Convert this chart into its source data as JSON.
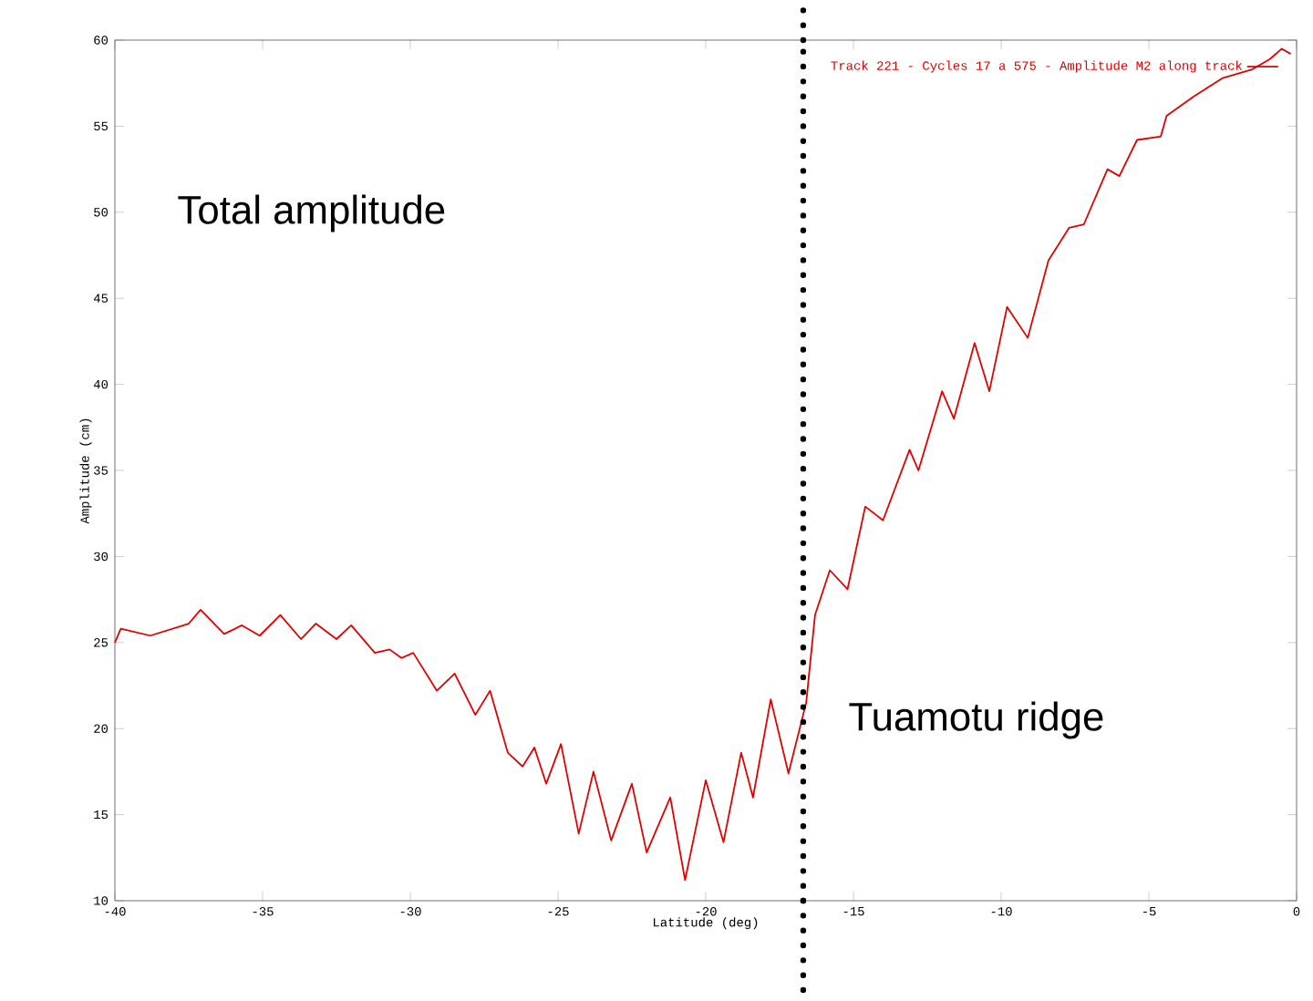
{
  "chart_data": {
    "type": "line",
    "xlabel": "Latitude (deg)",
    "ylabel": "Amplitude (cm)",
    "x": [
      -40,
      -39.8,
      -38.8,
      -37.5,
      -37.1,
      -36.3,
      -35.7,
      -35.1,
      -34.4,
      -33.7,
      -33.2,
      -32.5,
      -32.0,
      -31.2,
      -30.7,
      -30.3,
      -29.9,
      -29.1,
      -28.5,
      -27.8,
      -27.3,
      -26.7,
      -26.2,
      -25.8,
      -25.4,
      -24.9,
      -24.3,
      -23.8,
      -23.2,
      -22.5,
      -22.0,
      -21.2,
      -20.7,
      -20.0,
      -19.4,
      -18.8,
      -18.4,
      -17.8,
      -17.2,
      -16.6,
      -16.3,
      -15.8,
      -15.2,
      -14.6,
      -14.0,
      -13.1,
      -12.8,
      -12.0,
      -11.6,
      -10.9,
      -10.4,
      -9.8,
      -9.1,
      -8.4,
      -7.7,
      -7.2,
      -6.4,
      -6.0,
      -5.4,
      -4.6,
      -4.4,
      -3.5,
      -2.5,
      -1.5,
      -0.9,
      -0.5,
      -0.2
    ],
    "series": [
      {
        "name": "Track 221 - Cycles 17 a 575 - Amplitude M2 along track",
        "color": "#e00000",
        "values": [
          25.0,
          25.8,
          25.4,
          26.1,
          26.9,
          25.5,
          26.0,
          25.4,
          26.6,
          25.2,
          26.1,
          25.2,
          26.0,
          24.4,
          24.6,
          24.1,
          24.4,
          22.2,
          23.2,
          20.8,
          22.2,
          18.6,
          17.8,
          18.9,
          16.8,
          19.1,
          13.9,
          17.5,
          13.5,
          16.8,
          12.8,
          16.0,
          11.2,
          17.0,
          13.4,
          18.6,
          16.0,
          21.7,
          17.4,
          21.5,
          26.6,
          29.2,
          28.1,
          32.9,
          32.1,
          36.2,
          35.0,
          39.6,
          38.0,
          42.4,
          39.6,
          44.5,
          42.7,
          47.2,
          49.1,
          49.3,
          52.5,
          52.1,
          54.2,
          54.4,
          55.6,
          56.7,
          57.8,
          58.3,
          58.9,
          59.5,
          59.2
        ]
      }
    ],
    "xlim": [
      -40,
      0
    ],
    "ylim": [
      10,
      60
    ],
    "xticks": [
      -40,
      -35,
      -30,
      -25,
      -20,
      -15,
      -10,
      -5,
      0
    ],
    "yticks": [
      10,
      15,
      20,
      25,
      30,
      35,
      40,
      45,
      50,
      55,
      60
    ],
    "legend": "top right",
    "grid": false,
    "marker": "none",
    "line_style": "solid",
    "ref_lines": [
      {
        "axis": "x",
        "value": -16.7,
        "color": "#000000",
        "line_style": "dotted"
      }
    ],
    "annotations": [
      "Total amplitude",
      "Tuamotu ridge"
    ]
  }
}
